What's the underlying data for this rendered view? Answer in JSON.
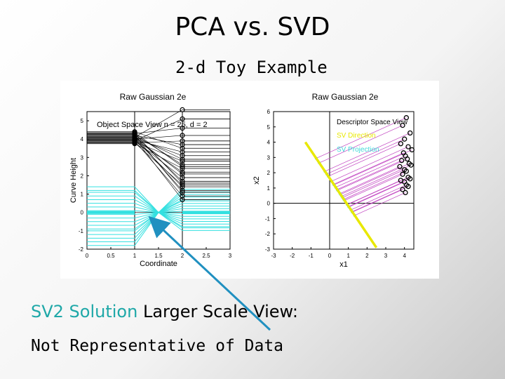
{
  "slide": {
    "title": "PCA vs. SVD",
    "subtitle": "2-d Toy Example",
    "caption_highlight": "SV2 Solution",
    "caption_rest": " Larger Scale View:",
    "caption_line2": "Not Representative of Data"
  },
  "colors": {
    "cyan": "#33e0e0",
    "magenta": "#c040c0",
    "yellow": "#e8e800",
    "arrow": "#2090c0"
  },
  "chart_data": [
    {
      "type": "line",
      "title": "Raw Gaussian 2e",
      "annotation": "Object Space View n = 25, d = 2",
      "xlabel": "Coordinate",
      "ylabel": "Curve Height",
      "xlim": [
        0,
        3
      ],
      "ylim": [
        -2,
        5.5
      ],
      "xticks": [
        "0",
        "0.5",
        "1",
        "1.5",
        "2",
        "2.5",
        "3"
      ],
      "yticks": [
        "-2",
        "-1",
        "0",
        "1",
        "2",
        "3",
        "4",
        "5"
      ],
      "x1_values": [
        4.1,
        3.9,
        4.3,
        4.0,
        3.8,
        4.2,
        4.4,
        3.95,
        4.05,
        4.15,
        3.85,
        4.25,
        4.35,
        3.75,
        4.0,
        4.1,
        3.9,
        4.2,
        4.3,
        3.8,
        4.0,
        4.1,
        4.2,
        3.9,
        4.05
      ],
      "x2_values": [
        5.6,
        5.1,
        4.6,
        4.2,
        3.9,
        3.7,
        3.5,
        3.3,
        3.1,
        2.9,
        2.8,
        2.6,
        2.5,
        2.4,
        2.2,
        2.1,
        1.9,
        1.7,
        1.6,
        1.5,
        1.4,
        1.2,
        1.1,
        0.9,
        0.7
      ],
      "cyan_values": [
        -1.8,
        -1.6,
        -1.4,
        -1.2,
        -1.0,
        -0.9,
        -0.7,
        -0.5,
        -0.3,
        -0.1,
        0.1,
        0.3,
        0.5,
        0.7,
        0.9,
        1.1,
        1.2,
        1.4
      ]
    },
    {
      "type": "scatter",
      "title": "Raw Gaussian 2e",
      "annotation": "Descriptor Space View",
      "legend": [
        "SV Direction",
        "SV Projection"
      ],
      "xlabel": "x1",
      "ylabel": "x2",
      "xlim": [
        -3,
        4.5
      ],
      "ylim": [
        -3,
        6
      ],
      "xticks": [
        "-3",
        "-2",
        "-1",
        "0",
        "1",
        "2",
        "3",
        "4"
      ],
      "yticks": [
        "-3",
        "-2",
        "-1",
        "0",
        "1",
        "2",
        "3",
        "4",
        "5",
        "6"
      ],
      "points_x": [
        4.1,
        3.9,
        4.3,
        4.0,
        3.8,
        4.2,
        4.4,
        3.95,
        4.05,
        4.15,
        3.85,
        4.25,
        4.35,
        3.75,
        4.0,
        4.1,
        3.9,
        4.2,
        4.3,
        3.8,
        4.0,
        4.1,
        4.2,
        3.9,
        4.05
      ],
      "points_y": [
        5.6,
        5.1,
        4.6,
        4.2,
        3.9,
        3.7,
        3.5,
        3.3,
        3.1,
        2.9,
        2.8,
        2.6,
        2.5,
        2.4,
        2.2,
        2.1,
        1.9,
        1.7,
        1.6,
        1.5,
        1.4,
        1.2,
        1.1,
        0.9,
        0.7
      ],
      "sv_direction": [
        [
          -1.3,
          4.0
        ],
        [
          2.5,
          -2.9
        ]
      ]
    }
  ]
}
